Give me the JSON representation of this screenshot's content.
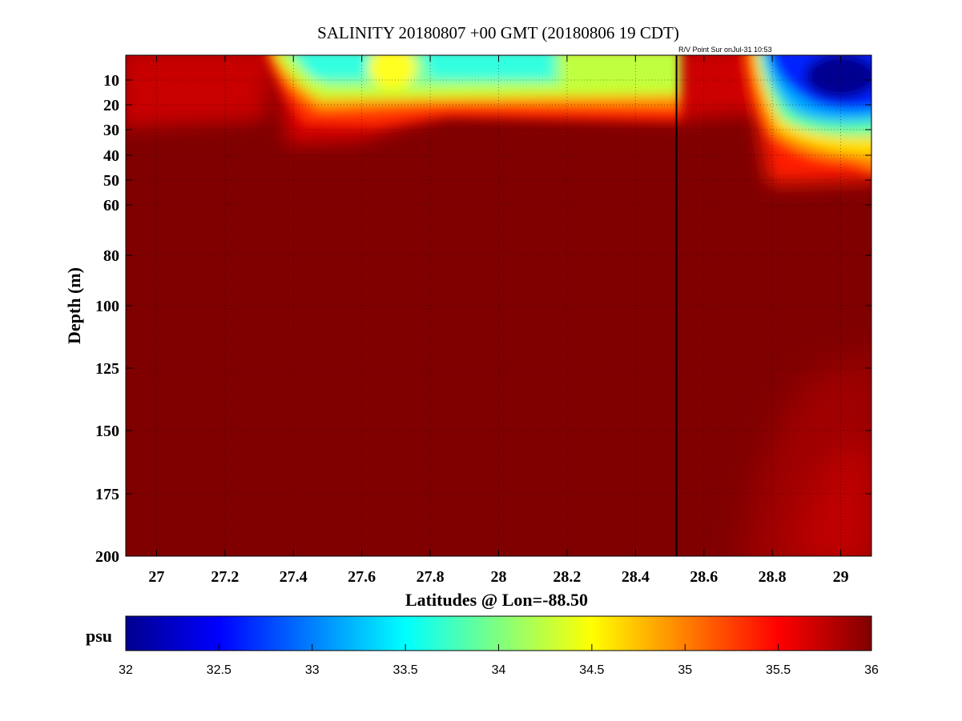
{
  "chart_data": {
    "type": "heatmap",
    "title": "SALINITY 20180807 +00 GMT (20180806 19 CDT)",
    "annotation": "R/V Point Sur onJul-31 10:53",
    "xlabel": "Latitudes @ Lon=-88.50",
    "ylabel": "Depth (m)",
    "xlim": [
      26.91,
      29.09
    ],
    "ylim": [
      200,
      0
    ],
    "y_scale": "nonlinear (compressed near surface)",
    "xticks": [
      27,
      27.2,
      27.4,
      27.6,
      27.8,
      28,
      28.2,
      28.4,
      28.6,
      28.8,
      29
    ],
    "xtick_labels": [
      "27",
      "27.2",
      "27.4",
      "27.6",
      "27.8",
      "28",
      "28.2",
      "28.4",
      "28.6",
      "28.8",
      "29"
    ],
    "yticks": [
      10,
      20,
      30,
      40,
      50,
      60,
      80,
      100,
      125,
      150,
      175,
      200
    ],
    "ytick_labels": [
      "10",
      "20",
      "30",
      "40",
      "50",
      "60",
      "80",
      "100",
      "125",
      "150",
      "175",
      "200"
    ],
    "grid": true,
    "marker_line_lat": 28.52,
    "colorbar": {
      "unit": "psu",
      "range": [
        32,
        36
      ],
      "ticks": [
        "32",
        "32.5",
        "33",
        "33.5",
        "34",
        "34.5",
        "35",
        "35.5",
        "36"
      ],
      "colormap": "jet"
    },
    "features": [
      {
        "region": "surface 27.35-28.5 N, 0-18 m",
        "value_psu": 34.0
      },
      {
        "region": "surface 27.7 N, 0-12 m",
        "value_psu": 34.5
      },
      {
        "region": "surface 28.85-29.09 N, 0-20 m",
        "value_psu": 32.3
      },
      {
        "region": "deep 28.8-29.09 N, 150-200 m",
        "value_psu": 35.5
      },
      {
        "region": "background",
        "value_psu": 36.0
      }
    ]
  }
}
